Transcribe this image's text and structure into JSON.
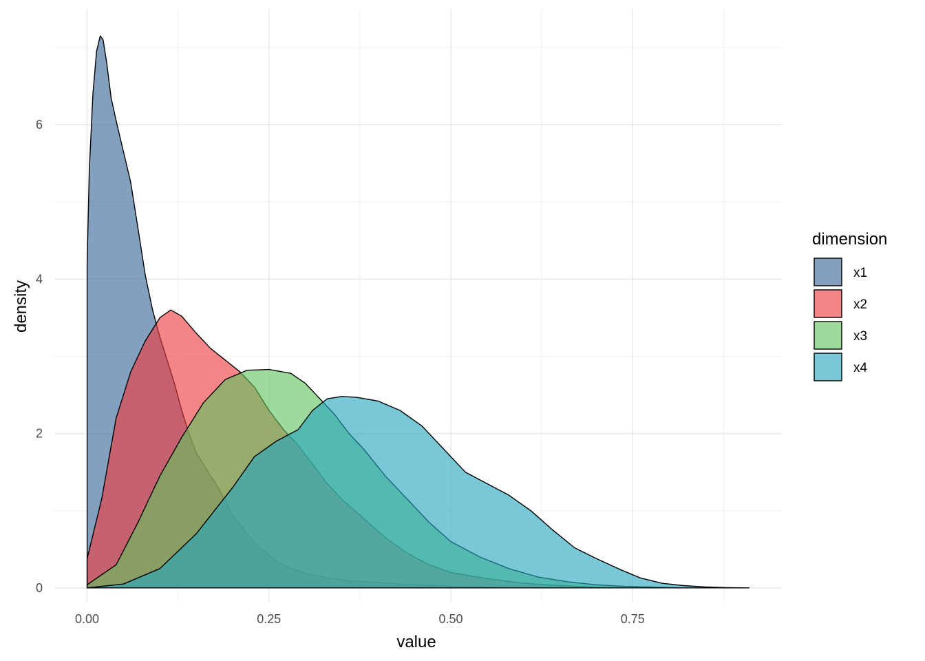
{
  "chart_data": {
    "type": "area",
    "subtype": "density",
    "xlabel": "value",
    "ylabel": "density",
    "xlim": [
      -0.045,
      0.955
    ],
    "ylim": [
      -0.18,
      7.5
    ],
    "x_ticks": [
      0,
      0.25,
      0.5,
      0.75
    ],
    "x_tick_labels": [
      "0.00",
      "0.25",
      "0.50",
      "0.75"
    ],
    "x_minor_ticks": [
      0.125,
      0.375,
      0.625,
      0.875
    ],
    "y_ticks": [
      0,
      2,
      4,
      6
    ],
    "y_tick_labels": [
      "0",
      "2",
      "4",
      "6"
    ],
    "y_minor_ticks": [
      1,
      3,
      5,
      7
    ],
    "grid": true,
    "theme": "minimal",
    "legend": {
      "title": "dimension",
      "position": "right"
    },
    "fill_opacity": 0.62,
    "series": [
      {
        "name": "x1",
        "color": "#376597",
        "x": [
          0.0,
          0.003,
          0.008,
          0.013,
          0.018,
          0.022,
          0.027,
          0.033,
          0.04,
          0.05,
          0.06,
          0.07,
          0.08,
          0.09,
          0.1,
          0.11,
          0.12,
          0.13,
          0.14,
          0.15,
          0.16,
          0.18,
          0.2,
          0.22,
          0.24,
          0.26,
          0.28,
          0.3,
          0.33,
          0.36,
          0.4,
          0.45,
          0.5,
          0.55,
          0.6,
          0.65,
          0.7
        ],
        "y": [
          4.2,
          5.4,
          6.4,
          6.95,
          7.15,
          7.1,
          6.8,
          6.35,
          6.05,
          5.65,
          5.25,
          4.65,
          4.05,
          3.6,
          3.25,
          2.95,
          2.65,
          2.3,
          2.0,
          1.75,
          1.6,
          1.3,
          0.95,
          0.7,
          0.5,
          0.35,
          0.25,
          0.19,
          0.13,
          0.09,
          0.07,
          0.04,
          0.02,
          0.01,
          0.005,
          0.002,
          0.0
        ]
      },
      {
        "name": "x2",
        "color": "#EF3B3D",
        "x": [
          0.0,
          0.02,
          0.04,
          0.06,
          0.08,
          0.1,
          0.115,
          0.13,
          0.15,
          0.17,
          0.19,
          0.21,
          0.23,
          0.25,
          0.27,
          0.29,
          0.31,
          0.33,
          0.35,
          0.38,
          0.41,
          0.44,
          0.47,
          0.5,
          0.55,
          0.6,
          0.65,
          0.7,
          0.75
        ],
        "y": [
          0.38,
          1.15,
          2.2,
          2.8,
          3.2,
          3.5,
          3.6,
          3.52,
          3.3,
          3.1,
          2.95,
          2.8,
          2.6,
          2.3,
          2.05,
          1.85,
          1.6,
          1.35,
          1.15,
          0.9,
          0.65,
          0.45,
          0.3,
          0.2,
          0.12,
          0.06,
          0.03,
          0.01,
          0.0
        ]
      },
      {
        "name": "x3",
        "color": "#62C45E",
        "x": [
          0.0,
          0.04,
          0.07,
          0.1,
          0.13,
          0.16,
          0.19,
          0.22,
          0.25,
          0.28,
          0.3,
          0.32,
          0.34,
          0.36,
          0.38,
          0.41,
          0.44,
          0.47,
          0.5,
          0.54,
          0.58,
          0.62,
          0.66,
          0.7,
          0.74,
          0.78,
          0.82
        ],
        "y": [
          0.04,
          0.3,
          0.85,
          1.45,
          1.95,
          2.4,
          2.7,
          2.82,
          2.83,
          2.78,
          2.65,
          2.45,
          2.25,
          2.0,
          1.8,
          1.45,
          1.15,
          0.85,
          0.6,
          0.4,
          0.25,
          0.14,
          0.08,
          0.04,
          0.02,
          0.01,
          0.0
        ]
      },
      {
        "name": "x4",
        "color": "#26A7BF",
        "x": [
          0.0,
          0.05,
          0.1,
          0.15,
          0.2,
          0.23,
          0.26,
          0.29,
          0.31,
          0.33,
          0.35,
          0.37,
          0.4,
          0.43,
          0.46,
          0.49,
          0.52,
          0.55,
          0.58,
          0.61,
          0.64,
          0.67,
          0.7,
          0.73,
          0.76,
          0.79,
          0.82,
          0.85,
          0.88,
          0.91
        ],
        "y": [
          0.0,
          0.05,
          0.25,
          0.7,
          1.3,
          1.7,
          1.9,
          2.05,
          2.3,
          2.45,
          2.48,
          2.47,
          2.42,
          2.3,
          2.1,
          1.8,
          1.5,
          1.35,
          1.2,
          1.0,
          0.75,
          0.52,
          0.38,
          0.25,
          0.13,
          0.06,
          0.03,
          0.012,
          0.004,
          0.0
        ]
      }
    ]
  }
}
